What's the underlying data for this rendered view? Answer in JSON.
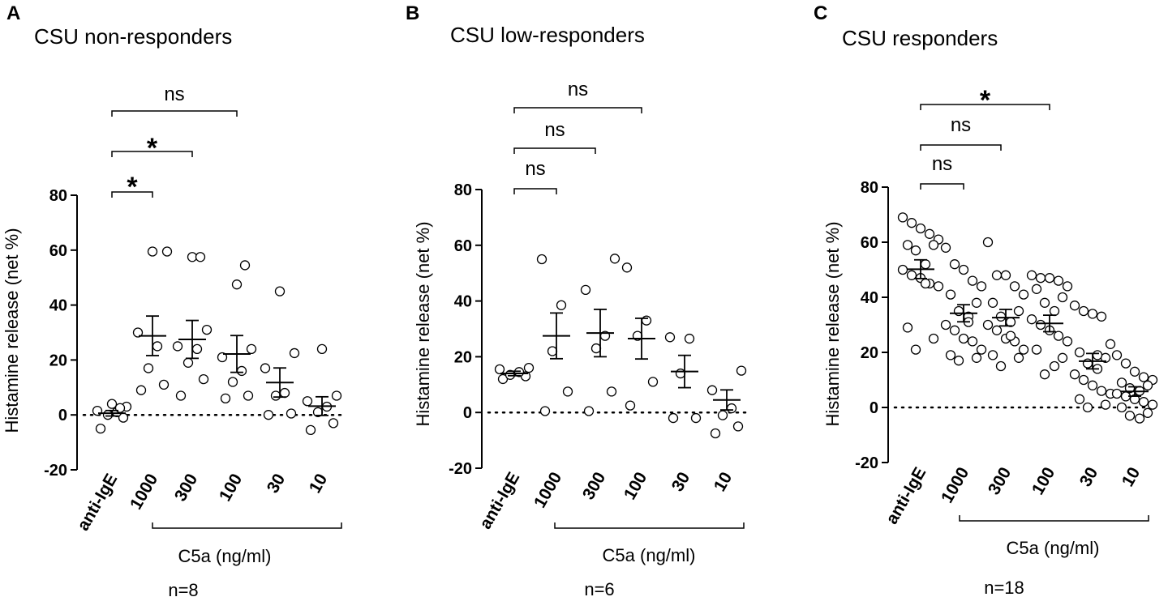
{
  "chart_data": [
    {
      "panel_letter": "A",
      "title": "CSU non-responders",
      "type": "scatter",
      "ylabel": "Histamine release (net %)",
      "ylim": [
        -20,
        80
      ],
      "yticks": [
        -20,
        0,
        20,
        40,
        60,
        80
      ],
      "categories": [
        "anti-IgE",
        "1000",
        "300",
        "100",
        "30",
        "10"
      ],
      "group_label": "C5a (ng/ml)",
      "n_label": "n=8",
      "reference_line_y": 0,
      "points": [
        [
          -5,
          -1,
          0,
          1,
          1.5,
          3,
          4,
          2.5
        ],
        [
          9,
          11,
          17,
          25,
          30,
          59.5,
          59.5
        ],
        [
          7,
          13,
          19,
          24,
          25,
          31,
          57.5,
          57.5
        ],
        [
          6,
          7,
          12,
          16,
          21,
          24,
          47.5,
          54.5
        ],
        [
          0,
          0.5,
          7,
          8,
          17,
          22.5,
          45
        ],
        [
          -5.5,
          -3,
          1,
          3,
          5,
          7,
          24
        ]
      ],
      "means": [
        0.6,
        28.8,
        27.5,
        22.2,
        11.8,
        3.2
      ],
      "sems": [
        1.0,
        7.2,
        6.9,
        6.7,
        5.3,
        3.4
      ],
      "comparisons": [
        {
          "from": "anti-IgE",
          "to": "1000",
          "label": "*"
        },
        {
          "from": "anti-IgE",
          "to": "300",
          "label": "*"
        },
        {
          "from": "anti-IgE",
          "to": "100",
          "label": "ns"
        }
      ]
    },
    {
      "panel_letter": "B",
      "title": "CSU low-responders",
      "type": "scatter",
      "ylabel": "Histamine release (net %)",
      "ylim": [
        -20,
        80
      ],
      "yticks": [
        -20,
        0,
        20,
        40,
        60,
        80
      ],
      "categories": [
        "anti-IgE",
        "1000",
        "300",
        "100",
        "30",
        "10"
      ],
      "group_label": "C5a (ng/ml)",
      "n_label": "n=6",
      "reference_line_y": 0,
      "points": [
        [
          12,
          13,
          13.5,
          14.5,
          15.5,
          16
        ],
        [
          0.5,
          7.5,
          22,
          38.5,
          55
        ],
        [
          0.5,
          7.5,
          23,
          27.5,
          44,
          55.2
        ],
        [
          2.5,
          11,
          27.5,
          33,
          52
        ],
        [
          -2,
          -2,
          14,
          26.5,
          27
        ],
        [
          -7.5,
          -5,
          -1,
          1.5,
          8,
          15
        ]
      ],
      "means": [
        14.0,
        27.5,
        28.5,
        26.5,
        14.7,
        4.5
      ],
      "sems": [
        0.8,
        8.2,
        8.5,
        7.3,
        5.8,
        3.6
      ],
      "comparisons": [
        {
          "from": "anti-IgE",
          "to": "1000",
          "label": "ns"
        },
        {
          "from": "anti-IgE",
          "to": "300",
          "label": "ns"
        },
        {
          "from": "anti-IgE",
          "to": "100",
          "label": "ns"
        }
      ]
    },
    {
      "panel_letter": "C",
      "title": "CSU responders",
      "type": "scatter",
      "ylabel": "Histamine release (net %)",
      "ylim": [
        -20,
        80
      ],
      "yticks": [
        -20,
        0,
        20,
        40,
        60,
        80
      ],
      "categories": [
        "anti-IgE",
        "1000",
        "300",
        "100",
        "30",
        "10"
      ],
      "group_label": "C5a (ng/ml)",
      "n_label": "n=18",
      "reference_line_y": 0,
      "points": [
        [
          69,
          67,
          65,
          63,
          61,
          59,
          59,
          57,
          52,
          50,
          48,
          47,
          45,
          44,
          29,
          25,
          21,
          45
        ],
        [
          58,
          52,
          50,
          46,
          44,
          41,
          38,
          35,
          33,
          30,
          28,
          25,
          24,
          21,
          19,
          18,
          17,
          31
        ],
        [
          60,
          48,
          48,
          44,
          41,
          38,
          35,
          33,
          31,
          30,
          28,
          25,
          24,
          21,
          19,
          18,
          15,
          26
        ],
        [
          48,
          47,
          47,
          46,
          44,
          43,
          40,
          38,
          35,
          32,
          30,
          28,
          26,
          24,
          21,
          18,
          12,
          15
        ],
        [
          37,
          35,
          34,
          33,
          23,
          20,
          18,
          16,
          14,
          12,
          10,
          8,
          6,
          5,
          3,
          1,
          0,
          19
        ],
        [
          19,
          16,
          13,
          11,
          10,
          9,
          8,
          7,
          6,
          5,
          4,
          3,
          2,
          1,
          0,
          -2,
          -3,
          -4
        ]
      ],
      "means": [
        50.2,
        34.2,
        32.6,
        30.5,
        16.8,
        5.8
      ],
      "sems": [
        3.4,
        3.1,
        3.0,
        3.0,
        2.8,
        1.7
      ],
      "comparisons": [
        {
          "from": "anti-IgE",
          "to": "1000",
          "label": "ns"
        },
        {
          "from": "anti-IgE",
          "to": "300",
          "label": "ns"
        },
        {
          "from": "anti-IgE",
          "to": "100",
          "label": "*"
        }
      ]
    }
  ]
}
